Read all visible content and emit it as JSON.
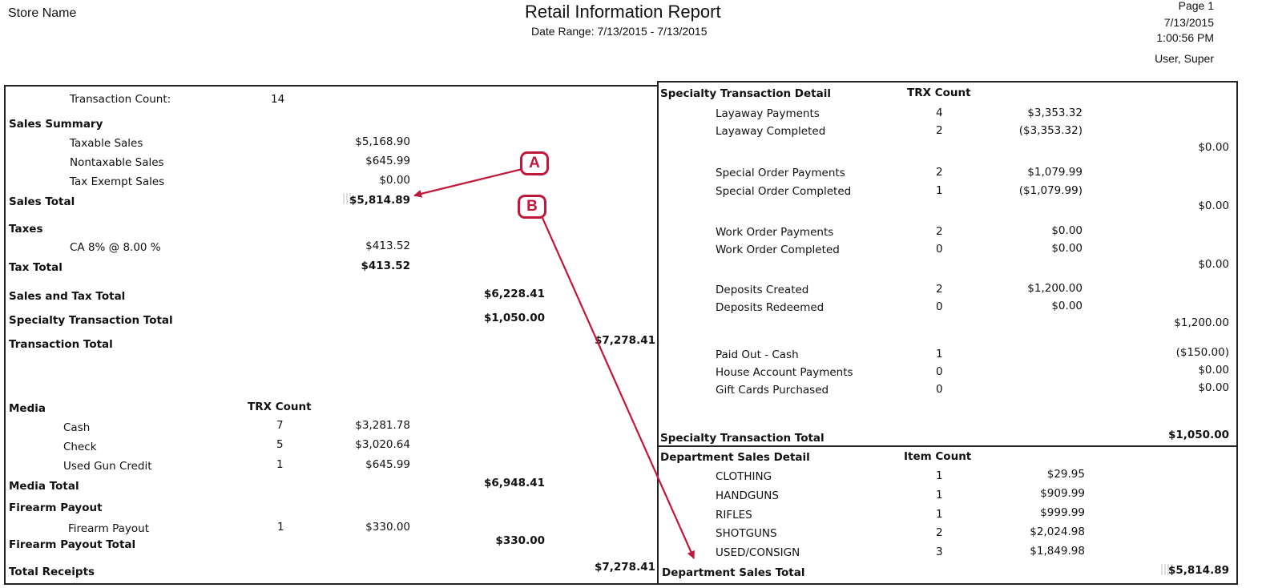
{
  "header": {
    "store_name": "Store Name",
    "title": "Retail Information Report",
    "date_range": "Date Range: 7/13/2015 - 7/13/2015",
    "page": "Page 1",
    "date": "7/13/2015",
    "time": "1:00:56 PM",
    "user": "User, Super"
  },
  "left": {
    "transaction_count_label": "Transaction Count:",
    "transaction_count_value": "14",
    "sales_summary_label": "Sales Summary",
    "taxable_label": "Taxable Sales",
    "taxable_value": "$5,168.90",
    "nontaxable_label": "Nontaxable Sales",
    "nontaxable_value": "$645.99",
    "exempt_label": "Tax Exempt Sales",
    "exempt_value": "$0.00",
    "sales_total_label": "Sales Total",
    "sales_total_value": "$5,814.89",
    "taxes_label": "Taxes",
    "ca_tax_label": "CA 8% @ 8.00 %",
    "ca_tax_value": "$413.52",
    "tax_total_label": "Tax Total",
    "tax_total_value": "$413.52",
    "sales_tax_total_label": "Sales and Tax Total",
    "sales_tax_total_value": "$6,228.41",
    "specialty_total_label": "Specialty Transaction Total",
    "specialty_total_value": "$1,050.00",
    "transaction_total_label": "Transaction Total",
    "transaction_total_value": "$7,278.41",
    "media_label": "Media",
    "media_count_header": "TRX Count",
    "cash_label": "Cash",
    "cash_count": "7",
    "cash_value": "$3,281.78",
    "check_label": "Check",
    "check_count": "5",
    "check_value": "$3,020.64",
    "ugc_label": "Used Gun Credit",
    "ugc_count": "1",
    "ugc_value": "$645.99",
    "media_total_label": "Media Total",
    "media_total_value": "$6,948.41",
    "firearm_payout_header": "Firearm Payout",
    "firearm_payout_label": "Firearm Payout",
    "firearm_payout_count": "1",
    "firearm_payout_value": "$330.00",
    "firearm_payout_total_label": "Firearm Payout Total",
    "firearm_payout_total_value": "$330.00",
    "total_receipts_label": "Total Receipts",
    "total_receipts_value": "$7,278.41"
  },
  "specialty": {
    "header": "Specialty Transaction Detail",
    "count_header": "TRX Count",
    "rows": [
      {
        "label": "Layaway Payments",
        "count": "4",
        "amount": "$3,353.32"
      },
      {
        "label": "Layaway Completed",
        "count": "2",
        "amount": "($3,353.32)"
      },
      {
        "label": "Special Order Payments",
        "count": "2",
        "amount": "$1,079.99"
      },
      {
        "label": "Special Order Completed",
        "count": "1",
        "amount": "($1,079.99)"
      },
      {
        "label": "Work Order Payments",
        "count": "2",
        "amount": "$0.00"
      },
      {
        "label": "Work Order Completed",
        "count": "0",
        "amount": "$0.00"
      },
      {
        "label": "Deposits Created",
        "count": "2",
        "amount": "$1,200.00"
      },
      {
        "label": "Deposits Redeemed",
        "count": "0",
        "amount": "$0.00"
      },
      {
        "label": "Paid Out - Cash",
        "count": "1",
        "amount": "($150.00)"
      },
      {
        "label": "House Account Payments",
        "count": "0",
        "amount": "$0.00"
      },
      {
        "label": "Gift Cards Purchased",
        "count": "0",
        "amount": "$0.00"
      }
    ],
    "subtotals": [
      "$0.00",
      "$0.00",
      "$0.00",
      "$1,200.00"
    ],
    "total_label": "Specialty Transaction Total",
    "total_value": "$1,050.00"
  },
  "department": {
    "header": "Department Sales Detail",
    "count_header": "Item Count",
    "rows": [
      {
        "label": "CLOTHING",
        "count": "1",
        "amount": "$29.95"
      },
      {
        "label": "HANDGUNS",
        "count": "1",
        "amount": "$909.99"
      },
      {
        "label": "RIFLES",
        "count": "1",
        "amount": "$999.99"
      },
      {
        "label": "SHOTGUNS",
        "count": "2",
        "amount": "$2,024.98"
      },
      {
        "label": "USED/CONSIGN",
        "count": "3",
        "amount": "$1,849.98"
      }
    ],
    "total_label": "Department Sales Total",
    "total_value": "$5,814.89"
  },
  "callouts": {
    "a": "A",
    "b": "B",
    "color": "#c0183a"
  }
}
